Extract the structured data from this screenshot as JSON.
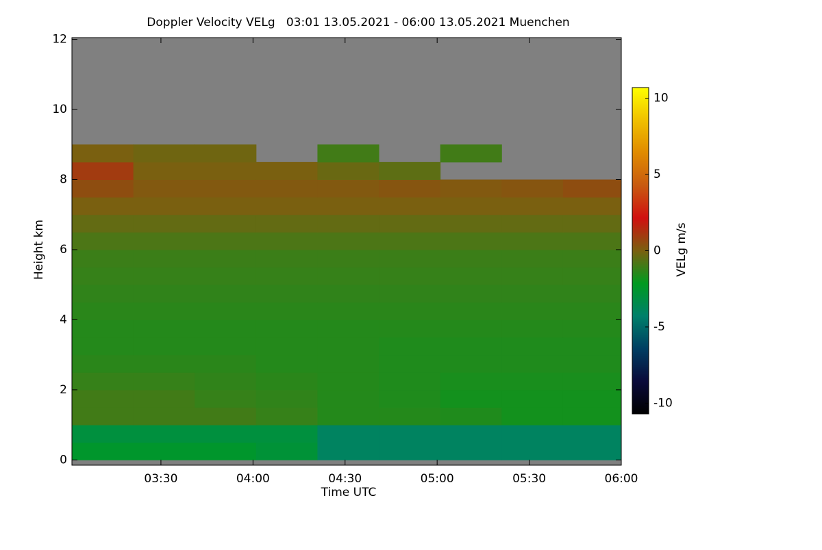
{
  "chart_data": {
    "type": "heatmap",
    "title": "Doppler Velocity VELg   03:01 13.05.2021 - 06:00 13.05.2021 Muenchen",
    "xlabel": "Time UTC",
    "ylabel": "Height km",
    "colorbar_label": "VELg m/s",
    "x": [
      "03:11",
      "03:31",
      "03:51",
      "04:11",
      "04:31",
      "04:51",
      "05:11",
      "05:31",
      "05:51"
    ],
    "y": [
      0.25,
      0.75,
      1.25,
      1.75,
      2.25,
      2.75,
      3.25,
      3.75,
      4.25,
      4.75,
      5.25,
      5.75,
      6.25,
      6.75,
      7.25,
      7.75,
      8.25,
      8.75,
      9.25,
      9.75,
      10.25,
      10.75,
      11.25,
      11.75
    ],
    "values": [
      [
        -2.5,
        -2.5,
        -2.5,
        -2.8,
        -4,
        -4,
        -4,
        -4,
        -4
      ],
      [
        -3,
        -3,
        -3,
        -3,
        -4,
        -4,
        -4,
        -4,
        -4
      ],
      [
        -1,
        -1,
        -1,
        -1.2,
        -1.5,
        -1.5,
        -1.6,
        -1.8,
        -1.8
      ],
      [
        -1,
        -1,
        -1.2,
        -1.3,
        -1.5,
        -1.6,
        -1.8,
        -1.8,
        -1.8
      ],
      [
        -1.2,
        -1.2,
        -1.3,
        -1.4,
        -1.5,
        -1.6,
        -1.7,
        -1.7,
        -1.7
      ],
      [
        -1.4,
        -1.4,
        -1.4,
        -1.5,
        -1.5,
        -1.6,
        -1.6,
        -1.6,
        -1.6
      ],
      [
        -1.5,
        -1.5,
        -1.5,
        -1.5,
        -1.5,
        -1.6,
        -1.6,
        -1.6,
        -1.6
      ],
      [
        -1.5,
        -1.5,
        -1.5,
        -1.5,
        -1.5,
        -1.5,
        -1.5,
        -1.5,
        -1.5
      ],
      [
        -1.4,
        -1.4,
        -1.4,
        -1.4,
        -1.4,
        -1.4,
        -1.4,
        -1.4,
        -1.4
      ],
      [
        -1.3,
        -1.3,
        -1.3,
        -1.3,
        -1.3,
        -1.3,
        -1.3,
        -1.3,
        -1.3
      ],
      [
        -1.2,
        -1.2,
        -1.2,
        -1.2,
        -1.2,
        -1.2,
        -1.2,
        -1.2,
        -1.2
      ],
      [
        -1.1,
        -1.1,
        -1.1,
        -1.1,
        -1.1,
        -1.1,
        -1.1,
        -1.1,
        -1.1
      ],
      [
        -0.8,
        -0.8,
        -0.8,
        -0.8,
        -0.8,
        -0.8,
        -0.8,
        -0.8,
        -0.8
      ],
      [
        -0.4,
        -0.4,
        -0.4,
        -0.4,
        -0.4,
        -0.4,
        -0.4,
        -0.4,
        -0.4
      ],
      [
        0,
        0,
        0,
        0,
        0,
        0,
        0,
        0,
        0
      ],
      [
        0.5,
        0.2,
        0.2,
        0.2,
        0.2,
        0.3,
        0.2,
        0.3,
        0.5
      ],
      [
        1,
        0,
        0,
        0,
        -0.3,
        -0.5,
        null,
        null,
        null
      ],
      [
        0,
        -0.2,
        -0.2,
        null,
        -1,
        null,
        -1,
        null,
        null
      ],
      [
        null,
        null,
        null,
        null,
        null,
        null,
        null,
        null,
        null
      ],
      [
        null,
        null,
        null,
        null,
        null,
        null,
        null,
        null,
        null
      ],
      [
        null,
        null,
        null,
        null,
        null,
        null,
        null,
        null,
        null
      ],
      [
        null,
        null,
        null,
        null,
        null,
        null,
        null,
        null,
        null
      ],
      [
        null,
        null,
        null,
        null,
        null,
        null,
        null,
        null,
        null
      ],
      [
        null,
        null,
        null,
        null,
        null,
        null,
        null,
        null,
        null
      ]
    ],
    "missing_color": "#808080",
    "colormap": [
      "#000000",
      "#0a0a3a",
      "#003e62",
      "#00806a",
      "#009a20",
      "#7a6010",
      "#d01010",
      "#c85a10",
      "#e08a00",
      "#f0c000",
      "#ffff00"
    ],
    "xlim": [
      "03:01",
      "06:00"
    ],
    "xticks": [
      "03:30",
      "04:00",
      "04:30",
      "05:00",
      "05:30",
      "06:00"
    ],
    "ylim": [
      -0.15,
      12.05
    ],
    "yticks": [
      0,
      2,
      4,
      6,
      8,
      10,
      12
    ],
    "zlim": [
      -10.7,
      10.7
    ],
    "zticks": [
      -10,
      -5,
      0,
      5,
      10
    ]
  }
}
